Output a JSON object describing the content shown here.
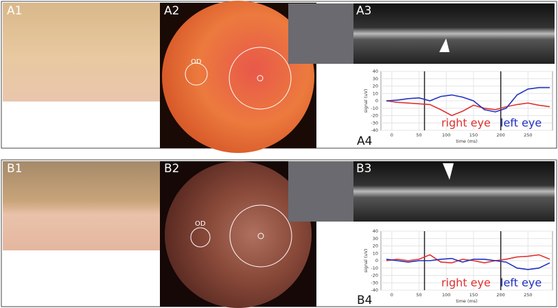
{
  "labels": {
    "a1": "A1",
    "a2": "A2",
    "a3": "A3",
    "a4": "A4",
    "b1": "B1",
    "b2": "B2",
    "b3": "B3",
    "b4": "B4",
    "od_a": "OD",
    "od_b": "OD"
  },
  "chart_data": [
    {
      "type": "line",
      "x_label": "time (ms)",
      "y_label": "signal (uV)",
      "x": [
        -10,
        10,
        30,
        50,
        70,
        90,
        110,
        130,
        150,
        170,
        190,
        210,
        230,
        250,
        270,
        290
      ],
      "series": [
        {
          "name": "right eye",
          "color": "#e03030",
          "values": [
            0,
            -2,
            -3,
            -4,
            -5,
            -12,
            -20,
            -14,
            -6,
            -10,
            -12,
            -8,
            -5,
            -3,
            -6,
            -8
          ]
        },
        {
          "name": "left eye",
          "color": "#2030c0",
          "values": [
            0,
            1,
            3,
            4,
            0,
            6,
            8,
            5,
            0,
            -12,
            -15,
            -10,
            8,
            16,
            18,
            18
          ]
        }
      ],
      "xlim": [
        -20,
        295
      ],
      "ylim": [
        -40,
        40
      ],
      "xticks": [
        0,
        50,
        100,
        150,
        200,
        250
      ],
      "yticks": [
        -40,
        -30,
        -20,
        -10,
        0,
        10,
        20,
        30,
        40
      ],
      "vlines": [
        60,
        200
      ],
      "grid": true
    },
    {
      "type": "line",
      "x_label": "time (ms)",
      "y_label": "signal (uV)",
      "x": [
        -10,
        10,
        30,
        50,
        70,
        90,
        110,
        130,
        150,
        170,
        190,
        210,
        230,
        250,
        270,
        290
      ],
      "series": [
        {
          "name": "right eye",
          "color": "#e03030",
          "values": [
            0,
            2,
            0,
            2,
            8,
            -2,
            -3,
            2,
            0,
            -3,
            0,
            2,
            5,
            6,
            8,
            2
          ]
        },
        {
          "name": "left eye",
          "color": "#2030c0",
          "values": [
            2,
            0,
            -2,
            0,
            0,
            2,
            3,
            -2,
            2,
            2,
            0,
            -2,
            -10,
            -12,
            -10,
            -3
          ]
        }
      ],
      "xlim": [
        -20,
        295
      ],
      "ylim": [
        -40,
        40
      ],
      "xticks": [
        0,
        50,
        100,
        150,
        200,
        250
      ],
      "yticks": [
        -40,
        -30,
        -20,
        -10,
        0,
        10,
        20,
        30,
        40
      ],
      "vlines": [
        60,
        200
      ],
      "grid": true
    }
  ]
}
